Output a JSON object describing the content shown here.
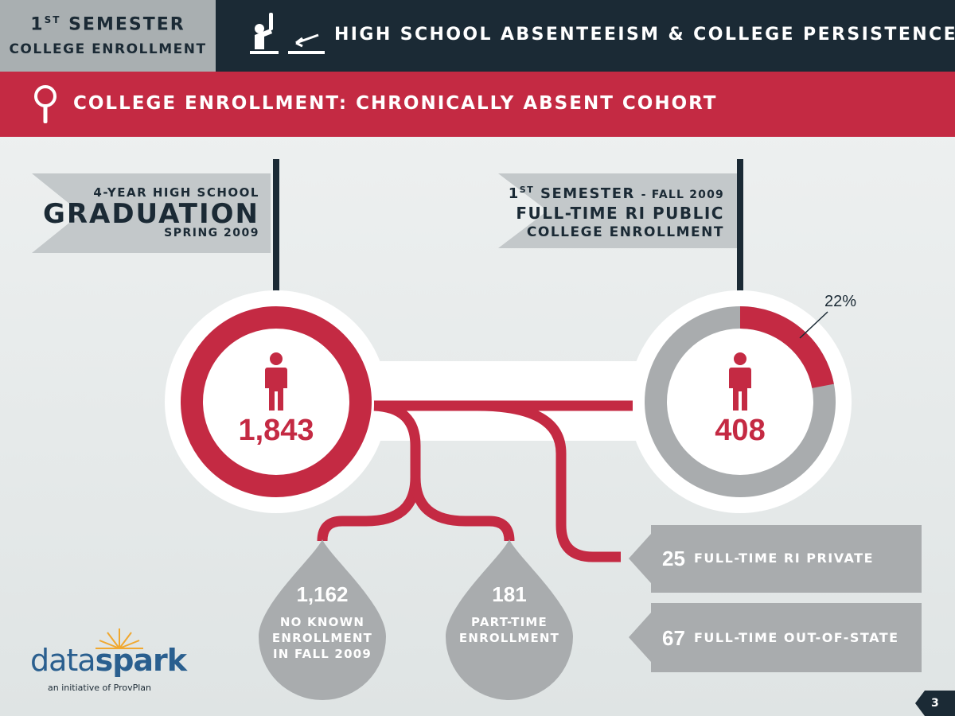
{
  "header": {
    "semester_line1_num": "1",
    "semester_line1_sup": "ST",
    "semester_line1_rest": " SEMESTER",
    "semester_line2": "COLLEGE ENROLLMENT",
    "title": "HIGH SCHOOL ABSENTEEISM & COLLEGE PERSISTENCE",
    "icon": "raised-hand-desk-icon"
  },
  "banner": {
    "title": "COLLEGE ENROLLMENT: CHRONICALLY ABSENT COHORT",
    "icon": "magnifier-icon"
  },
  "left_flag": {
    "line1": "4-YEAR HIGH SCHOOL",
    "line2": "GRADUATION",
    "line3": "SPRING 2009"
  },
  "right_flag": {
    "line1_num": "1",
    "line1_sup": "ST",
    "line1_rest": " SEMESTER ",
    "line1_fall": "- FALL 2009",
    "line2": "FULL-TIME RI PUBLIC",
    "line3": "COLLEGE ENROLLMENT"
  },
  "graduates": {
    "value": "1,843",
    "icon": "person-icon"
  },
  "public_enrollment": {
    "value": "408",
    "percent_label": "22%",
    "percent_value": 22,
    "icon": "person-icon"
  },
  "outcomes": {
    "no_enrollment": {
      "value": "1,162",
      "label_lines": [
        "NO KNOWN",
        "ENROLLMENT",
        "IN FALL 2009"
      ]
    },
    "part_time": {
      "value": "181",
      "label_lines": [
        "PART-TIME",
        "ENROLLMENT"
      ]
    },
    "ri_private": {
      "value": "25",
      "label": "FULL-TIME RI PRIVATE"
    },
    "out_of_state": {
      "value": "67",
      "label": "FULL-TIME OUT-OF-STATE"
    }
  },
  "logo": {
    "part1": "data",
    "part2": "spark",
    "tagline": "an initiative of ProvPlan"
  },
  "page_number": "3",
  "colors": {
    "navy": "#1b2a35",
    "red": "#c42a43",
    "gray": "#a9acae",
    "logo_blue": "#2a5f8f",
    "spark_orange": "#f0a830"
  }
}
